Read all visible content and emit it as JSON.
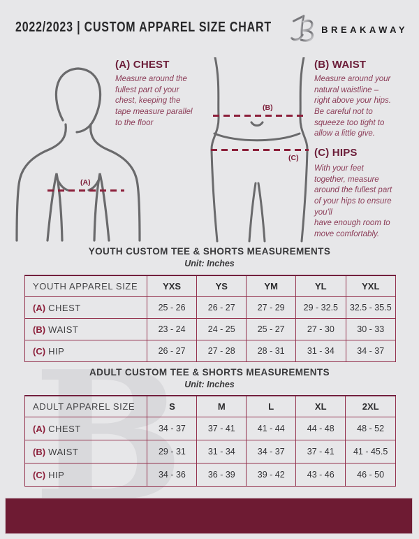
{
  "header": {
    "title": "2022/2023  |  CUSTOM APPAREL SIZE CHART",
    "brand": "BREAKAWAY",
    "logo_monogram": "B"
  },
  "instructions": {
    "chest": {
      "heading": "(A) CHEST",
      "text": "Measure around the\nfullest part of your\nchest, keeping the\ntape measure parallel\nto the floor"
    },
    "waist": {
      "heading": "(B) WAIST",
      "text": "Measure around your\nnatural waistline –\nright above your hips.\nBe careful not to\nsqueeze too tight to\nallow a little give."
    },
    "hips": {
      "heading": "(C) HIPS",
      "text": "With your feet\ntogether, measure\naround the fullest part\nof your hips to ensure\nyou'll\nhave enough room to\nmove comfortably."
    }
  },
  "diagram_labels": {
    "chest": "(A)",
    "waist": "(B)",
    "hips": "(C)"
  },
  "youth_table": {
    "title": "YOUTH CUSTOM TEE & SHORTS MEASUREMENTS",
    "unit": "Unit: Inches",
    "header": [
      "YOUTH APPAREL SIZE",
      "YXS",
      "YS",
      "YM",
      "YL",
      "YXL"
    ],
    "rows": [
      {
        "key": "(A)",
        "label": "CHEST",
        "values": [
          "25 - 26",
          "26 - 27",
          "27 - 29",
          "29 - 32.5",
          "32.5 - 35.5"
        ]
      },
      {
        "key": "(B)",
        "label": "WAIST",
        "values": [
          "23 - 24",
          "24 - 25",
          "25 - 27",
          "27 - 30",
          "30 - 33"
        ]
      },
      {
        "key": "(C)",
        "label": "HIP",
        "values": [
          "26 - 27",
          "27 - 28",
          "28 - 31",
          "31 - 34",
          "34 - 37"
        ]
      }
    ]
  },
  "adult_table": {
    "title": "ADULT CUSTOM TEE & SHORTS MEASUREMENTS",
    "unit": "Unit: Inches",
    "header": [
      "ADULT APPAREL SIZE",
      "S",
      "M",
      "L",
      "XL",
      "2XL"
    ],
    "rows": [
      {
        "key": "(A)",
        "label": "CHEST",
        "values": [
          "34 - 37",
          "37 - 41",
          "41 - 44",
          "44 - 48",
          "48 - 52"
        ]
      },
      {
        "key": "(B)",
        "label": "WAIST",
        "values": [
          "29 - 31",
          "31 - 34",
          "34 - 37",
          "37 - 41",
          "41 - 45.5"
        ]
      },
      {
        "key": "(C)",
        "label": "HIP",
        "values": [
          "34 - 36",
          "36 - 39",
          "39 - 42",
          "43 - 46",
          "46 - 50"
        ]
      }
    ]
  },
  "colors": {
    "accent": "#6e1b33",
    "heading": "#6b1c38",
    "bodytext": "#8c3d58",
    "dash": "#8c1f3a",
    "tableborder": "#94324e",
    "bg": "#e7e7e9",
    "watermark": "#d9d9dc"
  }
}
